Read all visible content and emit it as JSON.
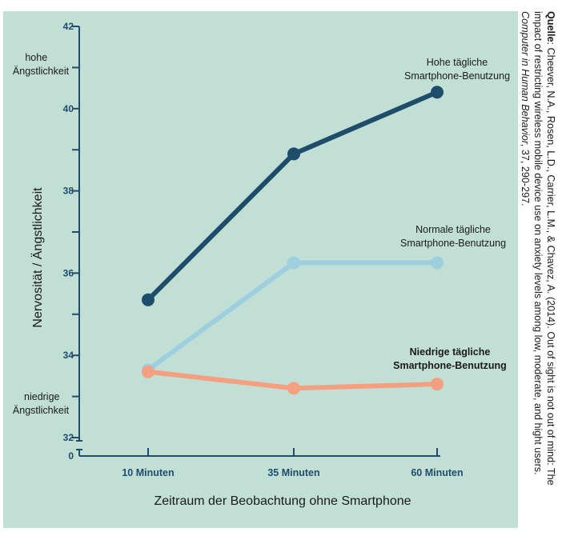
{
  "chart_data": {
    "type": "line",
    "categories": [
      "10 Minuten",
      "35 Minuten",
      "60 Minuten"
    ],
    "series": [
      {
        "name": "Hohe tägliche Smartphone-Benutzung",
        "label_lines": [
          "Hohe tägliche",
          "Smartphone-Benutzung"
        ],
        "values": [
          35.35,
          38.9,
          40.4
        ],
        "color": "#1e4d6b"
      },
      {
        "name": "Normale tägliche Smartphone-Benutzung",
        "label_lines": [
          "Normale tägliche",
          "Smartphone-Benutzung"
        ],
        "values": [
          33.65,
          36.25,
          36.25
        ],
        "color": "#9dcfdf"
      },
      {
        "name": "Niedrige tägliche Smartphone-Benutzung",
        "label_lines": [
          "Niedrige tägliche",
          "Smartphone-Benutzung"
        ],
        "values": [
          33.6,
          33.2,
          33.3
        ],
        "color": "#f4a080"
      }
    ],
    "xlabel": "Zeitraum der Beobachtung ohne Smartphone",
    "ylabel": "Nervosität / Ängstlichkeit",
    "ylim": [
      32,
      42
    ],
    "yticks": [
      "32",
      "34",
      "36",
      "38",
      "40",
      "42"
    ],
    "axis_break_zero": "0",
    "annotations": {
      "high": [
        "hohe",
        "Ängstlichkeit"
      ],
      "low": [
        "niedrige",
        "Ängstlichkeit"
      ]
    }
  },
  "source": {
    "label": "Quelle",
    "line1": ": Cheever, N.A., Rosen, L.D., Carrier, L.M., & Chavez, A. (2014). Out of sight is not out of mind: The",
    "line2": "impact of restricting wireless mobile device use on anxiety levels among low, moderate, and hight users.",
    "journal": "Computer in Human Behavior",
    "line3_rest": ", 37, 290-297."
  },
  "colors": {
    "panel": "#c2dfd5",
    "axis": "#1e4d6b",
    "text": "#1a1a1a"
  }
}
